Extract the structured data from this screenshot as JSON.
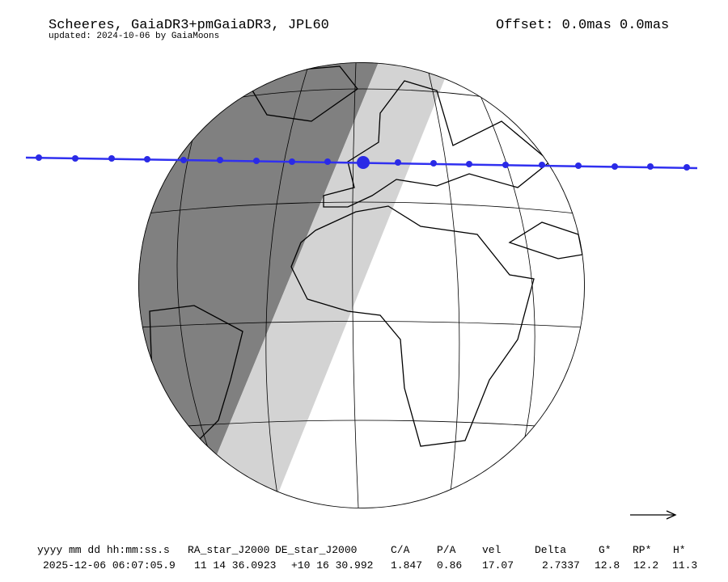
{
  "header": {
    "title": "Scheeres, GaiaDR3+pmGaiaDR3, JPL60",
    "updated": "updated: 2024-10-06 by GaiaMoons",
    "offset": "Offset: 0.0mas 0.0mas"
  },
  "table": {
    "columns": [
      "yyyy mm dd hh:mm:ss.s",
      "RA_star_J2000",
      "DE_star_J2000",
      "C/A",
      "P/A",
      "vel",
      "Delta",
      "G*",
      "RP*",
      "H*"
    ],
    "rows": [
      [
        "2025-12-06 06:07:05.9",
        "11 14 36.0923",
        "+10 16 30.992",
        "1.847",
        "0.86",
        "17.07",
        "2.7337",
        "12.8",
        "12.2",
        "11.3"
      ]
    ]
  }
}
